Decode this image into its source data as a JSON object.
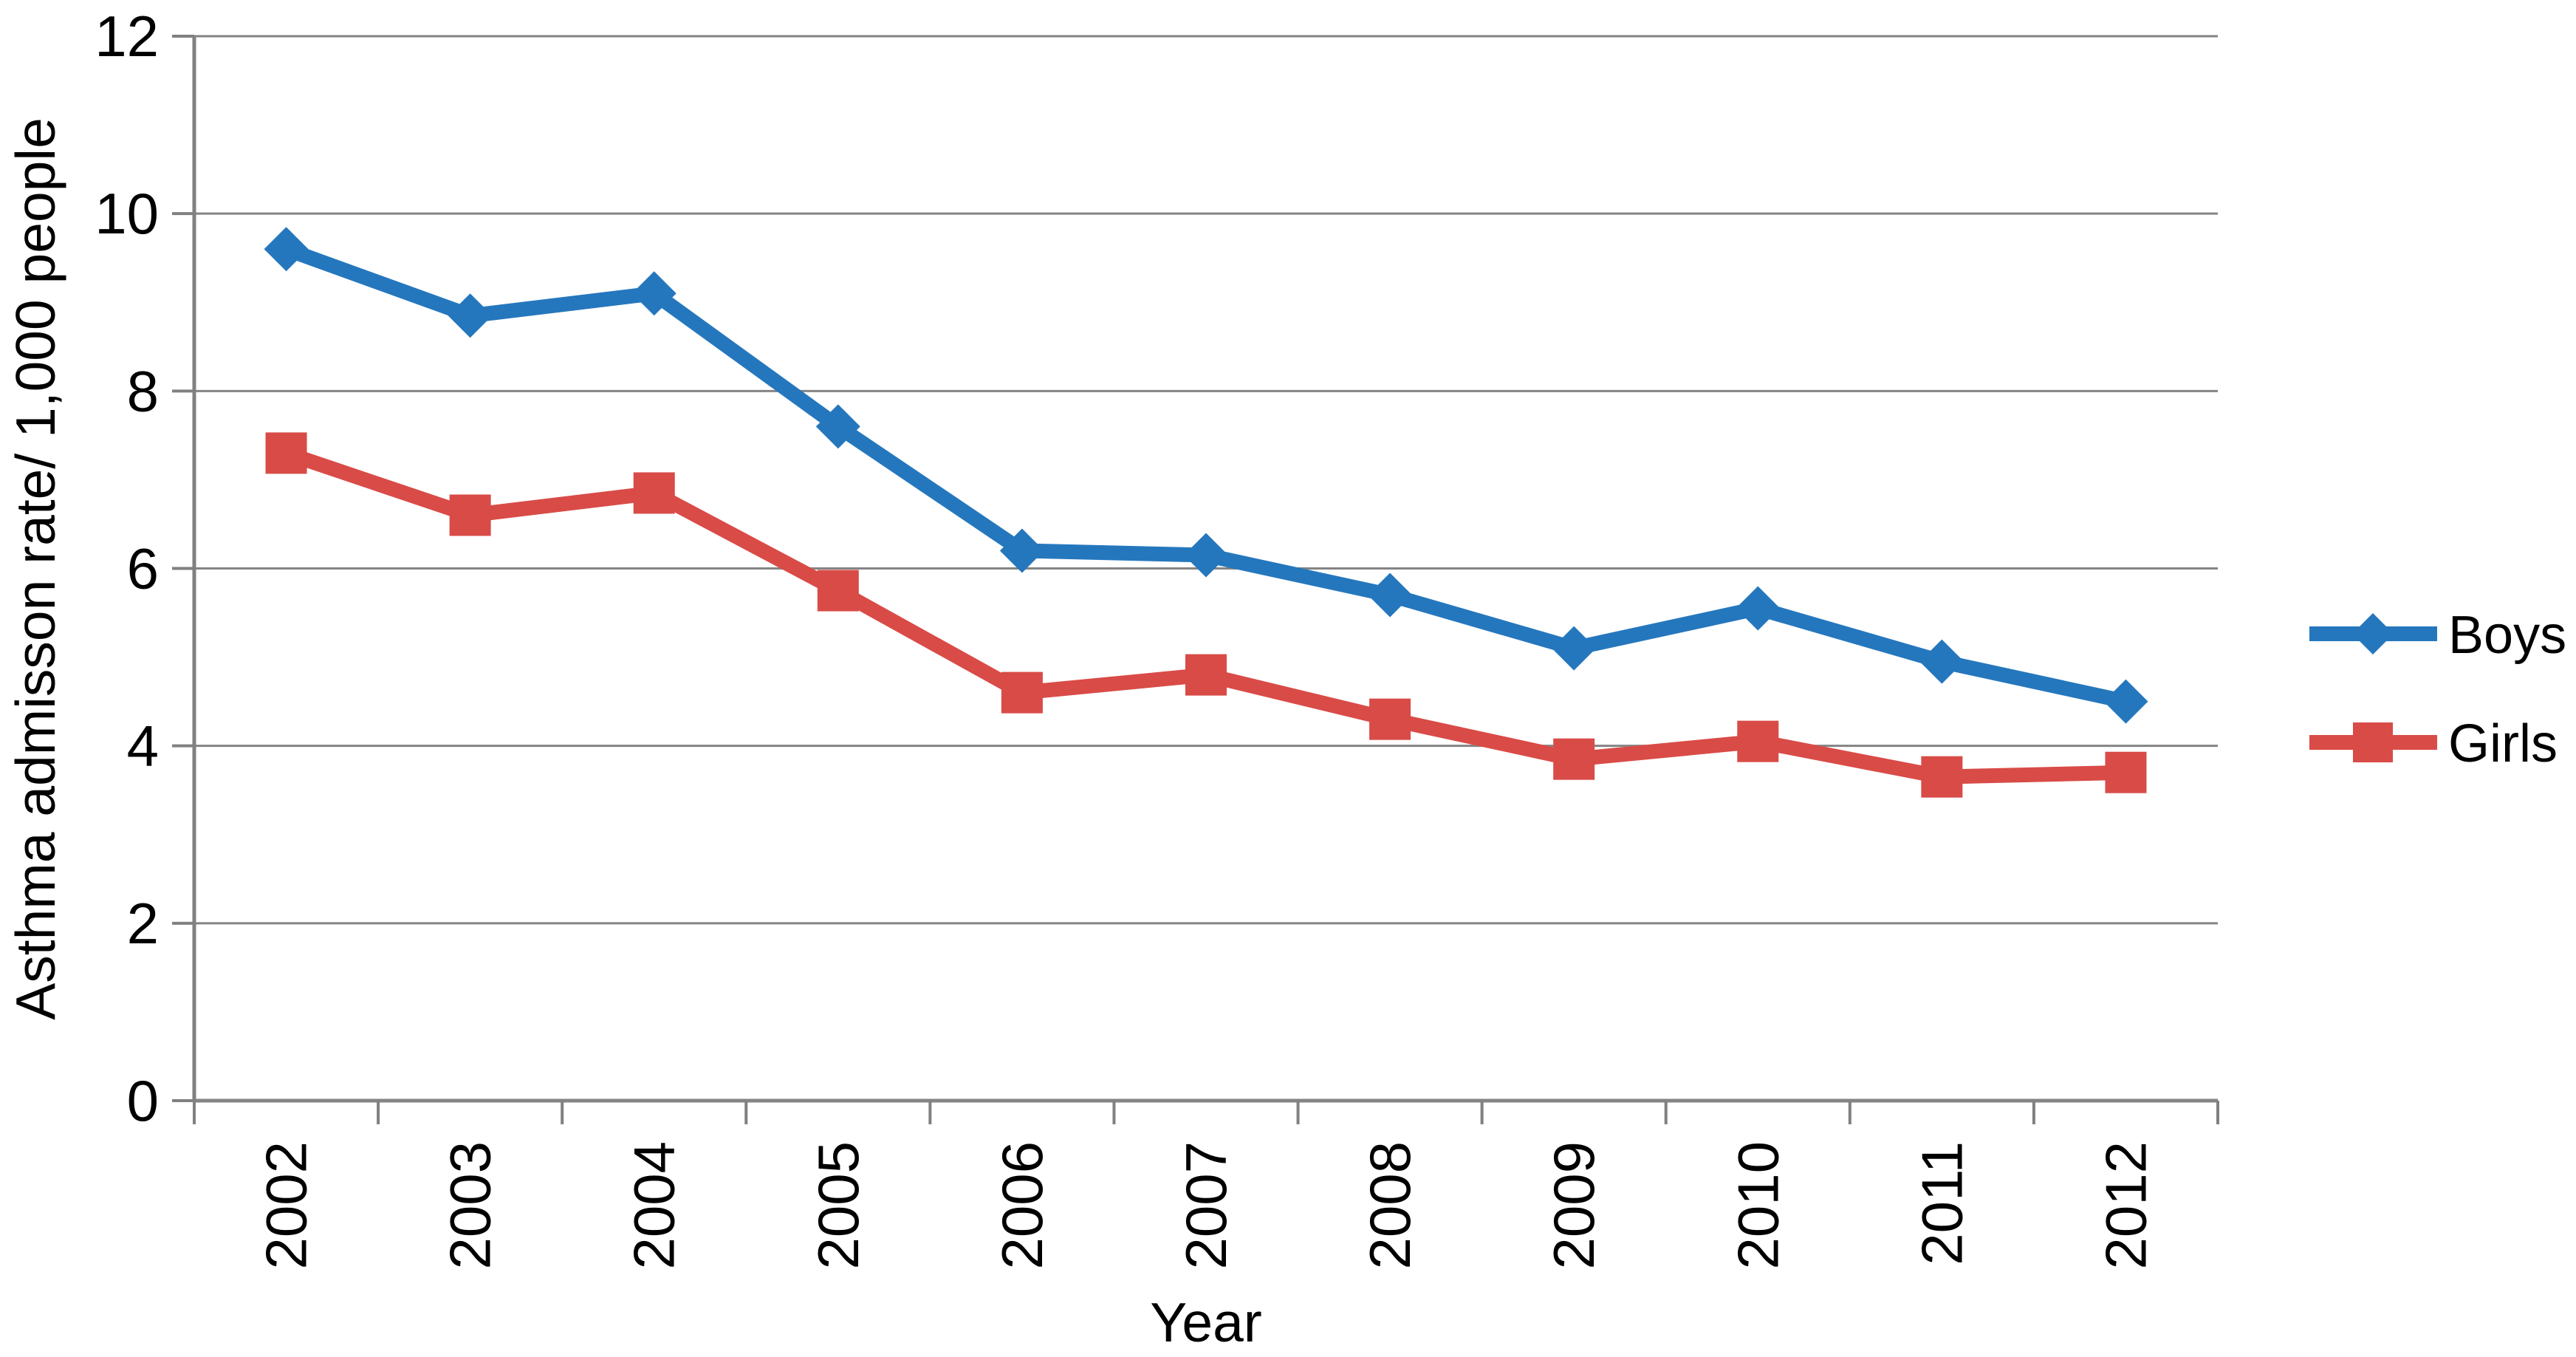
{
  "figure": {
    "background": "#ffffff"
  },
  "chart_data": {
    "type": "line",
    "title": "",
    "xlabel": "Year",
    "ylabel": "Asthma admisson rate/ 1,000 people",
    "categories": [
      "2002",
      "2003",
      "2004",
      "2005",
      "2006",
      "2007",
      "2008",
      "2009",
      "2010",
      "2011",
      "2012"
    ],
    "series": [
      {
        "name": "Boys",
        "color": "#2577BD",
        "marker": "diamond",
        "values": [
          9.6,
          8.85,
          9.1,
          7.6,
          6.2,
          6.15,
          5.7,
          5.1,
          5.55,
          4.95,
          4.5
        ]
      },
      {
        "name": "Girls",
        "color": "#D94B47",
        "marker": "square",
        "values": [
          7.3,
          6.6,
          6.85,
          5.75,
          4.6,
          4.8,
          4.3,
          3.85,
          4.05,
          3.65,
          3.7
        ]
      }
    ],
    "ylim": [
      0,
      12
    ],
    "yticks": [
      0,
      2,
      4,
      6,
      8,
      10,
      12
    ],
    "grid": "horizontal",
    "grid_color": "#848484",
    "axis_color": "#808080",
    "text_color": "#000000",
    "legend_position": "right"
  }
}
